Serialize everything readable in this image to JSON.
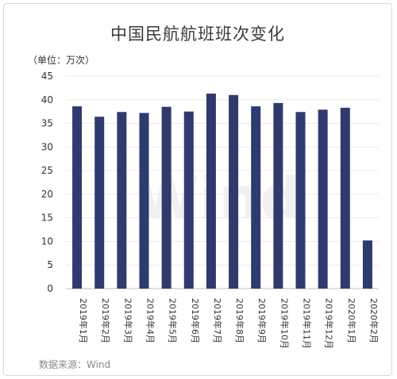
{
  "chart_data": {
    "type": "bar",
    "title": "中国民航航班班次变化",
    "unit_label": "（单位：万次）",
    "source": "数据来源：Wind",
    "watermark": "Wind",
    "categories": [
      "2019年1月",
      "2019年2月",
      "2019年3月",
      "2019年4月",
      "2019年5月",
      "2019年6月",
      "2019年7月",
      "2019年8月",
      "2019年9月",
      "2019年10月",
      "2019年11月",
      "2019年12月",
      "2020年1月",
      "2020年2月"
    ],
    "values": [
      38.6,
      36.4,
      37.4,
      37.2,
      38.5,
      37.5,
      41.3,
      41.0,
      38.6,
      39.3,
      37.4,
      37.9,
      38.3,
      10.2
    ],
    "ylim": [
      0,
      45
    ],
    "yticks": [
      0,
      5,
      10,
      15,
      20,
      25,
      30,
      35,
      40,
      45
    ],
    "grid": true,
    "bar_color": "#2f3a6e"
  }
}
